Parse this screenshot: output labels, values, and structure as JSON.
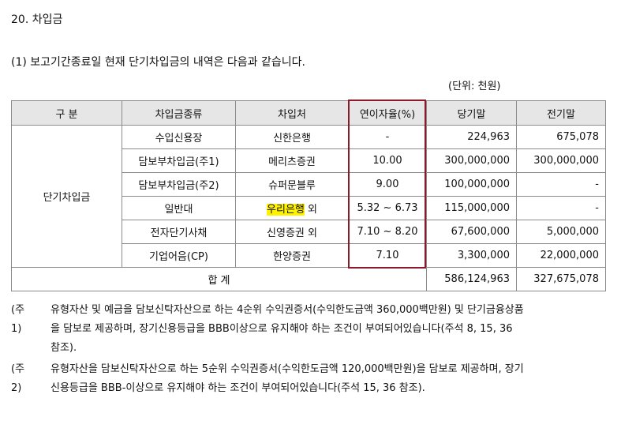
{
  "section_title": "20. 차입금",
  "subtitle": "(1) 보고기간종료일 현재 단기차입금의 내역은 다음과 같습니다.",
  "unit": "(단위: 천원)",
  "table": {
    "headers": [
      "구  분",
      "차입금종류",
      "차입처",
      "연이자율(%)",
      "당기말",
      "전기말"
    ],
    "category": "단기차입금",
    "rows": [
      {
        "type": "수입신용장",
        "lender": "신한은행",
        "lender_suffix": "",
        "rate": "-",
        "current": "224,963",
        "prior": "675,078"
      },
      {
        "type": "담보부차입금(주1)",
        "lender": "메리츠증권",
        "lender_suffix": "",
        "rate": "10.00",
        "current": "300,000,000",
        "prior": "300,000,000"
      },
      {
        "type": "담보부차입금(주2)",
        "lender": "슈퍼문블루",
        "lender_suffix": "",
        "rate": "9.00",
        "current": "100,000,000",
        "prior": "-"
      },
      {
        "type": "일반대",
        "lender": "우리은행",
        "lender_suffix": " 외",
        "rate": "5.32 ~ 6.73",
        "current": "115,000,000",
        "prior": "-"
      },
      {
        "type": "전자단기사채",
        "lender": "신영증권 외",
        "lender_suffix": "",
        "rate": "7.10 ~ 8.20",
        "current": "67,600,000",
        "prior": "5,000,000"
      },
      {
        "type": "기업어음(CP)",
        "lender": "한양증권",
        "lender_suffix": "",
        "rate": "7.10",
        "current": "3,300,000",
        "prior": "22,000,000"
      }
    ],
    "total": {
      "label": "합    계",
      "current": "586,124,963",
      "prior": "327,675,078"
    },
    "highlight_color": "#fff200",
    "box_color": "#8c1a2b"
  },
  "notes": [
    {
      "label": "(주1)",
      "text": "유형자산 및 예금을 담보신탁자산으로 하는 4순위 수익권증서(수익한도금액 360,000백만원) 및 단기금융상품을 담보로 제공하며, 장기신용등급을 BBB이상으로 유지해야 하는 조건이 부여되어있습니다(주석 8, 15, 36 참조)."
    },
    {
      "label": "(주2)",
      "text": "유형자산을 담보신탁자산으로 하는 5순위 수익권증서(수익한도금액 120,000백만원)을 담보로 제공하며, 장기신용등급을 BBB-이상으로 유지해야 하는 조건이 부여되어있습니다(주석 15, 36 참조)."
    }
  ]
}
